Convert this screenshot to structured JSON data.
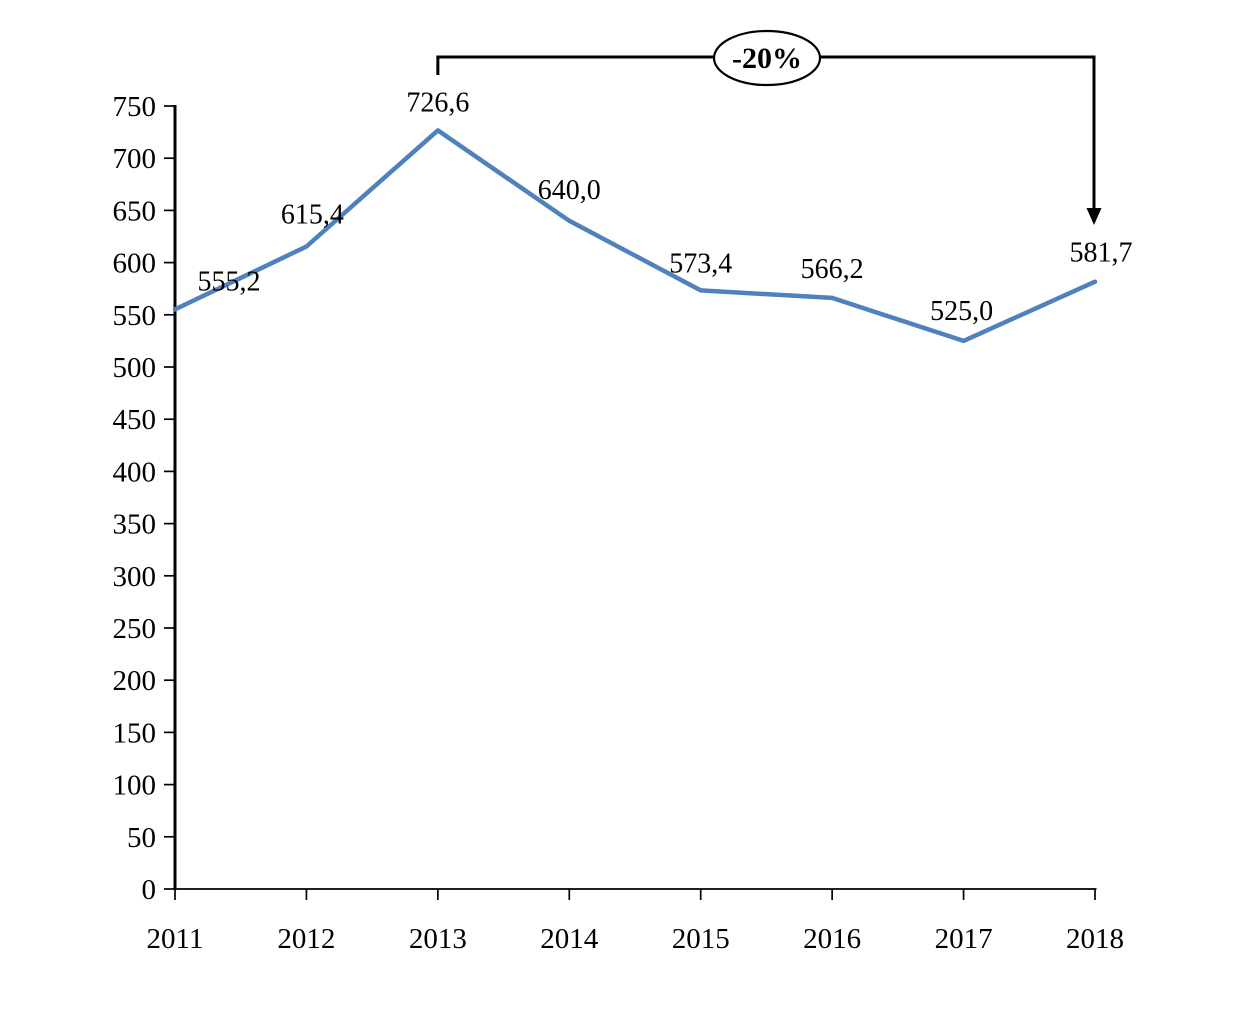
{
  "chart_data": {
    "type": "line",
    "title": "",
    "xlabel": "",
    "ylabel": "",
    "categories": [
      "2011",
      "2012",
      "2013",
      "2014",
      "2015",
      "2016",
      "2017",
      "2018"
    ],
    "series": [
      {
        "name": "value",
        "values": [
          555.2,
          615.4,
          726.6,
          640.0,
          573.4,
          566.2,
          525.0,
          581.7
        ],
        "point_labels": [
          "555,2",
          "615,4",
          "726,6",
          "640,0",
          "573,4",
          "566,2",
          "525,0",
          "581,7"
        ]
      }
    ],
    "y_axis": {
      "min": 0,
      "max": 750,
      "step": 50,
      "tick_labels": [
        "0",
        "50",
        "100",
        "150",
        "200",
        "250",
        "300",
        "350",
        "400",
        "450",
        "500",
        "550",
        "600",
        "650",
        "700",
        "750"
      ]
    },
    "grid": false,
    "legend": false,
    "annotation": {
      "text": "-20%",
      "from_category": "2013",
      "to_category": "2018"
    },
    "colors": {
      "line": "#4F81BD",
      "axis": "#000000",
      "annotation": "#000000",
      "ellipse_fill": "#FFFFFF",
      "background": "#FFFFFF"
    }
  }
}
